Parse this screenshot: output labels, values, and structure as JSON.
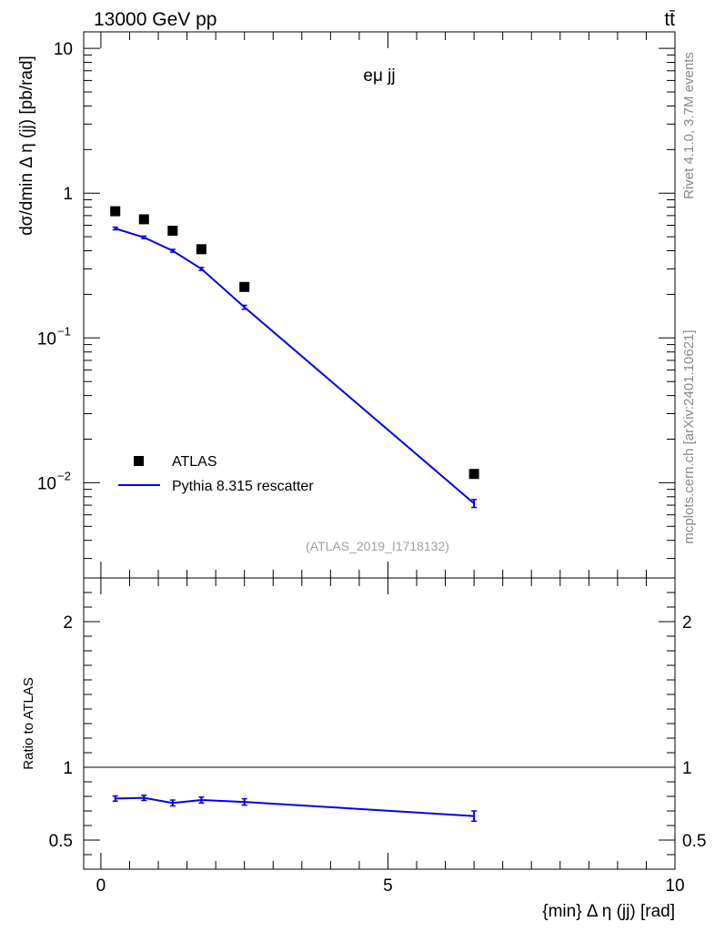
{
  "header": {
    "energy": "13000 GeV pp",
    "process": "tt̄"
  },
  "side_labels": {
    "rivet": "Rivet 4.1.0,  3.7M events",
    "source": "mcplots.cern.ch [arXiv:2401.10621]"
  },
  "colors": {
    "data": "#000000",
    "mc": "#0000ee",
    "watermark": "#a0a0a0"
  },
  "chart_data": [
    {
      "type": "scatter",
      "panel": "main",
      "title": "eμ jj",
      "ylabel": "dσ/dmin Δ η (jj) [pb/rad]",
      "xlabel": "",
      "yscale": "log",
      "xlim": [
        -0.3,
        10
      ],
      "ylim": [
        0.0022,
        13
      ],
      "y_ticks": [
        {
          "value": 10,
          "base": "10",
          "exp": ""
        },
        {
          "value": 1,
          "base": "1",
          "exp": ""
        },
        {
          "value": 0.1,
          "base": "10",
          "exp": "−1"
        },
        {
          "value": 0.01,
          "base": "10",
          "exp": "−2"
        }
      ],
      "watermark": "(ATLAS_2019_I1718132)",
      "legend_position": "lower-left",
      "series": [
        {
          "name": "ATLAS",
          "style": "markers",
          "x": [
            0.25,
            0.75,
            1.25,
            1.75,
            2.5,
            6.5
          ],
          "y": [
            0.75,
            0.66,
            0.55,
            0.41,
            0.225,
            0.0115
          ]
        },
        {
          "name": "Pythia 8.315 rescatter",
          "style": "line",
          "x": [
            0.25,
            0.75,
            1.25,
            1.75,
            2.5,
            6.5
          ],
          "y": [
            0.57,
            0.495,
            0.4,
            0.3,
            0.163,
            0.0072
          ],
          "err": [
            0.012,
            0.01,
            0.009,
            0.007,
            0.005,
            0.00045
          ]
        }
      ]
    },
    {
      "type": "line",
      "panel": "ratio",
      "ylabel": "Ratio to ATLAS",
      "xlabel": "{min} Δ η (jj) [rad]",
      "xlim": [
        -0.3,
        10
      ],
      "ylim": [
        0.3,
        2.3
      ],
      "x_ticks": [
        "0",
        "5",
        "10"
      ],
      "y_ticks": [
        "0.5",
        "1",
        "2"
      ],
      "reference": 1,
      "series": [
        {
          "name": "Pythia 8.315 rescatter",
          "x": [
            0.25,
            0.75,
            1.25,
            1.75,
            2.5,
            6.5
          ],
          "y": [
            0.785,
            0.79,
            0.755,
            0.775,
            0.762,
            0.665
          ],
          "err": [
            0.018,
            0.018,
            0.02,
            0.02,
            0.022,
            0.035
          ]
        }
      ]
    }
  ]
}
